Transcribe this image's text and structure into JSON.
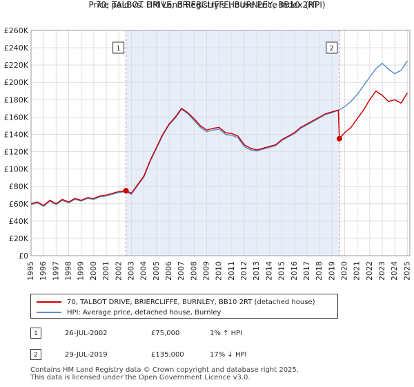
{
  "chart_data": {
    "type": "line",
    "title": "70, TALBOT DRIVE, BRIERCLIFFE, BURNLEY, BB10 2RT",
    "subtitle": "Price paid vs. HM Land Registry's House Price Index (HPI)",
    "xlim": [
      1995,
      2025.2
    ],
    "ylim": [
      0,
      260000
    ],
    "x_ticks": [
      1995,
      1996,
      1997,
      1998,
      1999,
      2000,
      2001,
      2002,
      2003,
      2004,
      2005,
      2006,
      2007,
      2008,
      2009,
      2010,
      2011,
      2012,
      2013,
      2014,
      2015,
      2016,
      2017,
      2018,
      2019,
      2020,
      2021,
      2022,
      2023,
      2024,
      2025
    ],
    "x_tick_labels": [
      "1995",
      "1996",
      "1997",
      "1998",
      "1999",
      "2000",
      "2001",
      "2002",
      "2003",
      "2004",
      "2005",
      "2006",
      "2007",
      "2008",
      "2009",
      "2010",
      "2011",
      "2012",
      "2013",
      "2014",
      "2015",
      "2016",
      "2017",
      "2018",
      "2019",
      "2020",
      "2021",
      "2022",
      "2023",
      "2024",
      "2025"
    ],
    "y_ticks": [
      0,
      20000,
      40000,
      60000,
      80000,
      100000,
      120000,
      140000,
      160000,
      180000,
      200000,
      220000,
      240000,
      260000
    ],
    "y_tick_labels": [
      "£0",
      "£20K",
      "£40K",
      "£60K",
      "£80K",
      "£100K",
      "£120K",
      "£140K",
      "£160K",
      "£180K",
      "£200K",
      "£220K",
      "£240K",
      "£260K"
    ],
    "series": [
      {
        "name": "70, TALBOT DRIVE, BRIERCLIFFE, BURNLEY, BB10 2RT (detached house)",
        "color": "#cc0000",
        "x": [
          1995.0,
          1995.5,
          1996.0,
          1996.5,
          1997.0,
          1997.5,
          1998.0,
          1998.5,
          1999.0,
          1999.5,
          2000.0,
          2000.5,
          2001.0,
          2001.5,
          2002.0,
          2002.57,
          2003.0,
          2003.5,
          2004.0,
          2004.5,
          2005.0,
          2005.5,
          2006.0,
          2006.5,
          2007.0,
          2007.5,
          2008.0,
          2008.5,
          2009.0,
          2009.5,
          2010.0,
          2010.5,
          2011.0,
          2011.5,
          2012.0,
          2012.5,
          2013.0,
          2013.5,
          2014.0,
          2014.5,
          2015.0,
          2015.5,
          2016.0,
          2016.5,
          2017.0,
          2017.5,
          2018.0,
          2018.5,
          2019.0,
          2019.5,
          2019.58,
          2020.0,
          2020.5,
          2021.0,
          2021.5,
          2022.0,
          2022.5,
          2023.0,
          2023.5,
          2024.0,
          2024.5,
          2025.0
        ],
        "values": [
          60000,
          62000,
          58000,
          64000,
          60000,
          65000,
          62000,
          66000,
          64000,
          67000,
          66000,
          69000,
          70000,
          72000,
          74000,
          75000,
          72000,
          82000,
          92000,
          110000,
          125000,
          140000,
          152000,
          160000,
          170000,
          165000,
          158000,
          150000,
          145000,
          147000,
          148000,
          142000,
          141000,
          138000,
          128000,
          124000,
          122000,
          124000,
          126000,
          128000,
          134000,
          138000,
          142000,
          148000,
          152000,
          156000,
          160000,
          164000,
          166000,
          168000,
          135000,
          142000,
          148000,
          158000,
          168000,
          180000,
          190000,
          185000,
          178000,
          180000,
          176000,
          188000
        ]
      },
      {
        "name": "HPI: Average price, detached house, Burnley",
        "color": "#5b8fd0",
        "x": [
          1995.0,
          1995.5,
          1996.0,
          1996.5,
          1997.0,
          1997.5,
          1998.0,
          1998.5,
          1999.0,
          1999.5,
          2000.0,
          2000.5,
          2001.0,
          2001.5,
          2002.0,
          2002.57,
          2003.0,
          2003.5,
          2004.0,
          2004.5,
          2005.0,
          2005.5,
          2006.0,
          2006.5,
          2007.0,
          2007.5,
          2008.0,
          2008.5,
          2009.0,
          2009.5,
          2010.0,
          2010.5,
          2011.0,
          2011.5,
          2012.0,
          2012.5,
          2013.0,
          2013.5,
          2014.0,
          2014.5,
          2015.0,
          2015.5,
          2016.0,
          2016.5,
          2017.0,
          2017.5,
          2018.0,
          2018.5,
          2019.0,
          2019.5,
          2020.0,
          2020.5,
          2021.0,
          2021.5,
          2022.0,
          2022.5,
          2023.0,
          2023.5,
          2024.0,
          2024.5,
          2025.0
        ],
        "values": [
          59000,
          61000,
          57000,
          63000,
          59000,
          64000,
          61000,
          65000,
          63000,
          66000,
          65000,
          68000,
          69000,
          71000,
          73000,
          74000,
          71000,
          81000,
          91000,
          109000,
          124000,
          139000,
          151000,
          159000,
          169000,
          164000,
          156000,
          148000,
          143000,
          145000,
          146000,
          140000,
          139000,
          136000,
          126000,
          122000,
          121000,
          123000,
          125000,
          127000,
          133000,
          137000,
          141000,
          147000,
          151000,
          155000,
          159000,
          163000,
          165000,
          168000,
          172000,
          178000,
          186000,
          196000,
          206000,
          216000,
          222000,
          215000,
          210000,
          214000,
          225000
        ]
      }
    ],
    "annotations": [
      {
        "label": "1",
        "x": 2002.57,
        "y": 75000,
        "date": "26-JUL-2002",
        "price": "£75,000",
        "hpi": "1% ↑ HPI"
      },
      {
        "label": "2",
        "x": 2019.58,
        "y": 135000,
        "date": "29-JUL-2019",
        "price": "£135,000",
        "hpi": "17% ↓ HPI"
      }
    ],
    "legend_position": "bottom"
  },
  "footer": {
    "line1": "Contains HM Land Registry data © Crown copyright and database right 2025.",
    "line2": "This data is licensed under the Open Government Licence v3.0."
  }
}
